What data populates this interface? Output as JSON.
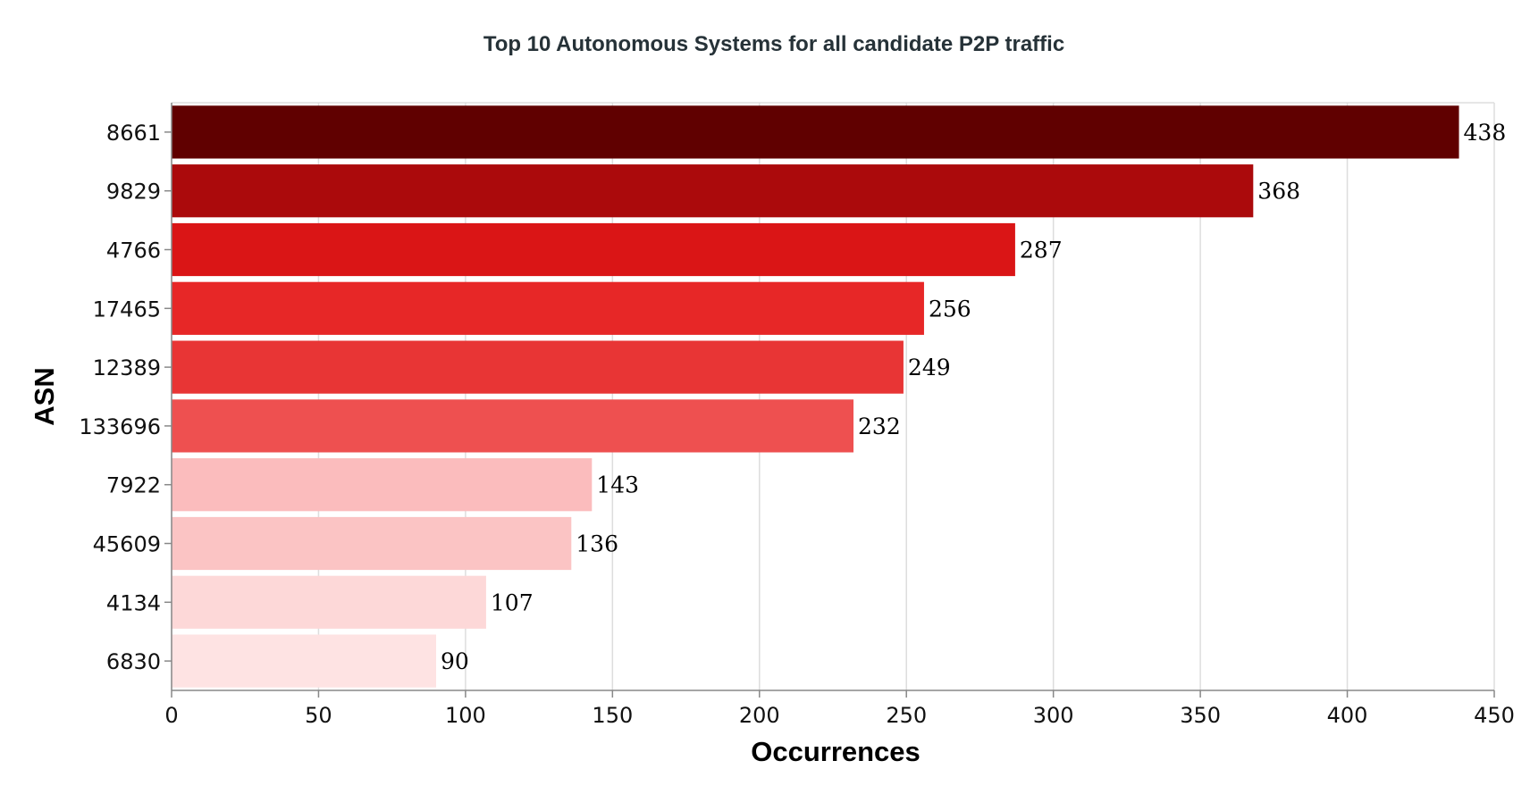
{
  "chart_data": {
    "type": "bar",
    "orientation": "horizontal",
    "title": "Top 10 Autonomous Systems for all candidate P2P traffic",
    "xlabel": "Occurrences",
    "ylabel": "ASN",
    "xlim": [
      0,
      450
    ],
    "xticks": [
      0,
      50,
      100,
      150,
      200,
      250,
      300,
      350,
      400,
      450
    ],
    "grid": true,
    "categories": [
      "8661",
      "9829",
      "4766",
      "17465",
      "12389",
      "133696",
      "7922",
      "45609",
      "4134",
      "6830"
    ],
    "values": [
      438,
      368,
      287,
      256,
      249,
      232,
      143,
      136,
      107,
      90
    ],
    "colors": [
      "#600000",
      "#ab0a0c",
      "#da1516",
      "#e72727",
      "#e83535",
      "#ee5050",
      "#fbbcbd",
      "#fbc4c4",
      "#fdd8d8",
      "#fee3e3"
    ]
  }
}
